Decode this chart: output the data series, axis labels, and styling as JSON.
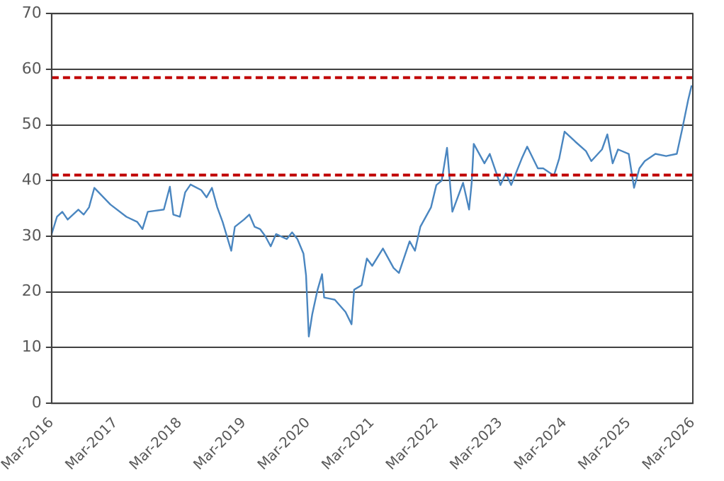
{
  "chart_data": {
    "type": "line",
    "x": [
      "2016-03",
      "2016-04",
      "2016-05",
      "2016-06",
      "2016-08",
      "2016-09",
      "2016-10",
      "2016-11",
      "2017-02",
      "2017-05",
      "2017-07",
      "2017-08",
      "2017-09",
      "2017-12",
      "2018-01-05",
      "2018-01-25",
      "2018-03",
      "2018-04",
      "2018-05",
      "2018-07",
      "2018-08",
      "2018-09",
      "2018-10",
      "2018-11",
      "2018-12-20",
      "2019-01-10",
      "2019-03",
      "2019-04",
      "2019-05",
      "2019-06",
      "2019-07",
      "2019-08",
      "2019-09",
      "2019-11",
      "2019-12",
      "2020-01",
      "2020-02-05",
      "2020-02-20",
      "2020-03-05",
      "2020-03-25",
      "2020-04-25",
      "2020-05-20",
      "2020-06",
      "2020-07",
      "2020-08",
      "2020-10",
      "2020-11-05",
      "2020-11-20",
      "2021-01",
      "2021-02",
      "2021-03",
      "2021-05",
      "2021-07",
      "2021-08",
      "2021-10",
      "2021-11",
      "2021-12",
      "2022-02",
      "2022-03",
      "2022-04",
      "2022-05",
      "2022-06",
      "2022-08",
      "2022-09-05",
      "2022-09-20",
      "2022-10",
      "2022-12",
      "2023-01",
      "2023-03",
      "2023-04",
      "2023-05",
      "2023-07",
      "2023-08",
      "2023-10",
      "2023-11",
      "2024-01",
      "2024-02",
      "2024-03",
      "2024-05",
      "2024-07",
      "2024-08",
      "2024-10",
      "2024-11",
      "2024-12",
      "2025-01",
      "2025-03",
      "2025-04",
      "2025-05",
      "2025-06",
      "2025-08",
      "2025-10",
      "2025-12",
      "2026-01",
      "2026-02-05",
      "2026-02-25"
    ],
    "series": [
      {
        "color": "#4a86c0",
        "values": [
          30.4,
          33.5,
          34.4,
          33,
          34.8,
          33.9,
          35.2,
          38.7,
          35.7,
          33.5,
          32.6,
          31.3,
          34.4,
          34.8,
          38.9,
          33.9,
          33.5,
          37.9,
          39.3,
          38.3,
          37,
          38.7,
          35.2,
          32.6,
          27.4,
          31.7,
          33,
          33.9,
          31.7,
          31.3,
          30,
          28.2,
          30.4,
          29.5,
          30.7,
          29.5,
          26.9,
          23,
          12,
          16,
          20.4,
          23.2,
          19,
          18.8,
          18.6,
          16.4,
          14.2,
          20.4,
          21.2,
          26,
          24.7,
          27.8,
          24.3,
          23.4,
          29.1,
          27.4,
          31.7,
          35.2,
          39.2,
          40,
          45.9,
          34.4,
          39.6,
          34.8,
          39.6,
          46.6,
          43.1,
          44.8,
          39.2,
          41.3,
          39.2,
          44,
          46.1,
          42.2,
          42.2,
          40.9,
          44,
          48.8,
          47,
          45.3,
          43.5,
          45.6,
          48.3,
          43.1,
          45.6,
          44.8,
          38.7,
          42.2,
          43.5,
          44.8,
          44.4,
          44.8,
          49.2,
          54.5,
          57.1
        ]
      }
    ],
    "xlim": [
      "2016-03",
      "2026-03"
    ],
    "xticks": [
      {
        "value": "2016-03",
        "label": "Mar-2016"
      },
      {
        "value": "2017-03",
        "label": "Mar-2017"
      },
      {
        "value": "2018-03",
        "label": "Mar-2018"
      },
      {
        "value": "2019-03",
        "label": "Mar-2019"
      },
      {
        "value": "2020-03",
        "label": "Mar-2020"
      },
      {
        "value": "2021-03",
        "label": "Mar-2021"
      },
      {
        "value": "2022-03",
        "label": "Mar-2022"
      },
      {
        "value": "2023-03",
        "label": "Mar-2023"
      },
      {
        "value": "2024-03",
        "label": "Mar-2024"
      },
      {
        "value": "2025-03",
        "label": "Mar-2025"
      },
      {
        "value": "2026-03",
        "label": "Mar-2026"
      }
    ],
    "ylim": [
      0,
      70
    ],
    "yticks": [
      0,
      10,
      20,
      30,
      40,
      50,
      60,
      70
    ],
    "ref_lines": [
      {
        "axis": "y",
        "value": 58.5,
        "color": "#c00000",
        "line_style": "dashed"
      },
      {
        "axis": "y",
        "value": 41,
        "color": "#c00000",
        "line_style": "dashed"
      }
    ],
    "grid": "y",
    "legend": false,
    "marker": "none",
    "line_style": "solid"
  }
}
